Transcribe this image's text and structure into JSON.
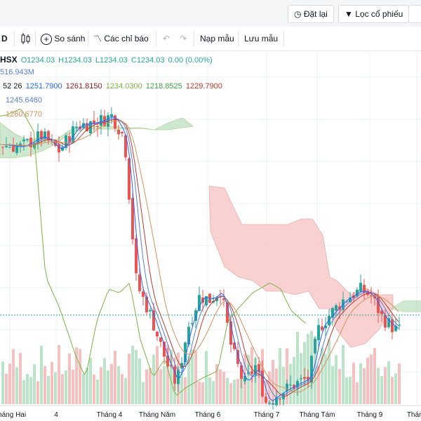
{
  "topbar": {
    "reset_label": "Đặt lại",
    "filter_label": "Lọc cổ phiếu"
  },
  "toolbar": {
    "interval_label": "D",
    "compare_label": "So sánh",
    "indicators_label": "Các chỉ báo",
    "load_template_label": "Nạp mẫu",
    "save_template_label": "Lưu mẫu"
  },
  "legend": {
    "symbol": "HSX",
    "open": "O1234.03",
    "high": "H1234.03",
    "low": "L1234.03",
    "close": "C1234.03",
    "change": "0.00 (0.00%)",
    "volume": "516.943M",
    "ichimoku_params": "52 26",
    "ichimoku_values": [
      "1251.7900",
      "1261.8150",
      "1234.0300",
      "1218.8525",
      "1229.7900"
    ],
    "ma1_value": "1245.6460",
    "ma2_value": "1260.6770"
  },
  "colors": {
    "up": "#26a69a",
    "down": "#ef5350",
    "cloud_bull": "#a5d6a7",
    "cloud_bear": "#f8c6c6",
    "tenkan": "#2962ff",
    "kijun": "#c0392b",
    "chikou": "#7cb342",
    "ma1": "#5b7fd6",
    "ma2": "#d4925a"
  },
  "chart_data": {
    "type": "candlestick",
    "x_tick_labels": [
      "Tháng Hai",
      "4",
      "Tháng 4",
      "Tháng Năm",
      "Tháng 6",
      "Tháng 7",
      "Tháng Tám",
      "Tháng 9",
      "Tháng"
    ],
    "price_range": [
      1080,
      1330
    ],
    "last_price_line": 1234.03,
    "price_approx_path": [
      {
        "x": "Tháng Hai",
        "y": 1285
      },
      {
        "x": "4",
        "y": 1290
      },
      {
        "x": "Tháng 4",
        "y": 1300
      },
      {
        "x": "Tháng Năm",
        "y": 1130
      },
      {
        "x": "Tháng 6",
        "y": 1200
      },
      {
        "x": "Tháng 7",
        "y": 1130
      },
      {
        "x": "Tháng Tám",
        "y": 1165
      },
      {
        "x": "Tháng 9",
        "y": 1240
      }
    ]
  }
}
